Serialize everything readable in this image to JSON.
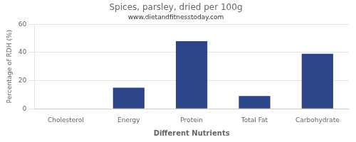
{
  "chart_data": {
    "type": "bar",
    "title": "Spices, parsley, dried per 100g",
    "subtitle": "www.dietandfitnesstoday.com",
    "xlabel": "Different Nutrients",
    "ylabel": "Percentage of RDH (%)",
    "categories": [
      "Cholesterol",
      "Energy",
      "Protein",
      "Total Fat",
      "Carbohydrate"
    ],
    "values": [
      0,
      15,
      48,
      9,
      39
    ],
    "color": "#2d4488",
    "ylim": [
      0,
      60
    ],
    "yticks": [
      0,
      20,
      40,
      60
    ],
    "grid": true
  }
}
